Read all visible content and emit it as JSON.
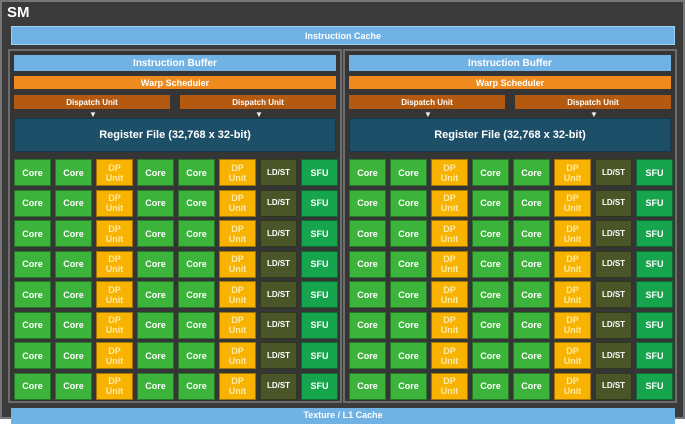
{
  "title": "SM",
  "instruction_cache": "Instruction Cache",
  "l1_cache": "Texture / L1 Cache",
  "partition": {
    "instruction_buffer": "Instruction Buffer",
    "warp_scheduler": "Warp Scheduler",
    "dispatch_unit": "Dispatch Unit",
    "register_file": "Register File (32,768 x 32-bit)",
    "unit_row": [
      "Core",
      "Core",
      "DP Unit",
      "Core",
      "Core",
      "DP Unit",
      "LD/ST",
      "SFU"
    ],
    "rows": 8
  },
  "colors": {
    "core": "#3cb43c",
    "dp_unit": "#f7b300",
    "ldst": "#4a5628",
    "sfu": "#16a44c",
    "cache": "#6fb2e3",
    "scheduler": "#ef8a1e",
    "dispatch": "#b35a10",
    "register_file": "#1e4f68"
  }
}
